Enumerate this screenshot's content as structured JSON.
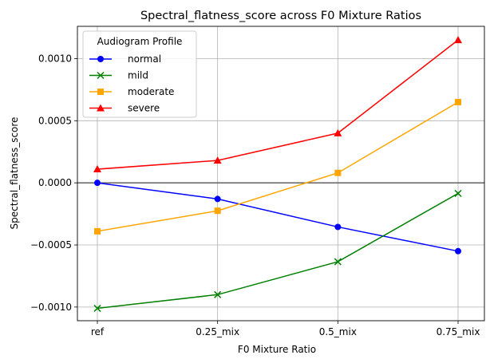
{
  "chart_data": {
    "type": "line",
    "title": "Spectral_flatness_score across F0 Mixture Ratios",
    "xlabel": "F0 Mixture Ratio",
    "ylabel": "Spectral_flatness_score",
    "categories": [
      "ref",
      "0.25_mix",
      "0.5_mix",
      "0.75_mix"
    ],
    "ylim": [
      -0.00111,
      0.00126
    ],
    "yticks": [
      -0.001,
      -0.0005,
      0.0,
      0.0005,
      0.001
    ],
    "ytick_labels": [
      "−0.0010",
      "−0.0005",
      "0.0000",
      "0.0005",
      "0.0010"
    ],
    "grid": true,
    "zero_line": true,
    "legend": {
      "title": "Audiogram Profile",
      "placement": "top-left"
    },
    "series": [
      {
        "name": "normal",
        "color": "#0000ff",
        "marker": "circle",
        "values": [
          0.0,
          -0.00013,
          -0.000355,
          -0.00055
        ]
      },
      {
        "name": "mild",
        "color": "#008000",
        "marker": "x",
        "values": [
          -0.00101,
          -0.0009,
          -0.000635,
          -8.5e-05
        ]
      },
      {
        "name": "moderate",
        "color": "#ffa500",
        "marker": "square",
        "values": [
          -0.00039,
          -0.000225,
          8e-05,
          0.00065
        ]
      },
      {
        "name": "severe",
        "color": "#ff0000",
        "marker": "triangle",
        "values": [
          0.00011,
          0.00018,
          0.0004,
          0.00115
        ]
      }
    ]
  }
}
